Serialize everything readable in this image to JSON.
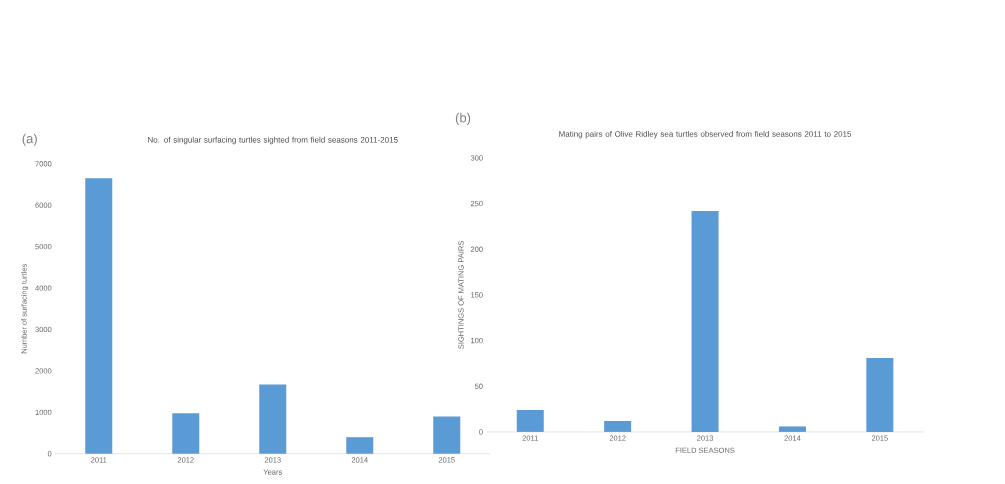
{
  "chart_data": [
    {
      "type": "bar",
      "title": "No. of singular surfacing turtles sighted from field seasons 2011-2015",
      "xlabel": "Years",
      "ylabel": "Number of surfacing turtles",
      "annotations": [
        "(a)"
      ],
      "categories": [
        "2011",
        "2012",
        "2013",
        "2014",
        "2015"
      ],
      "values": [
        6650,
        980,
        1670,
        400,
        900
      ],
      "color": "#5b9bd5",
      "ylim": [
        0,
        7000
      ],
      "yticks": [
        0,
        1000,
        2000,
        3000,
        4000,
        5000,
        6000,
        7000
      ]
    },
    {
      "type": "bar",
      "title": "Mating pairs of Olive Ridley sea turtles observed from field seasons 2011 to 2015",
      "xlabel": "FIELD SEASONS",
      "ylabel": "SIGHTINGS OF MATING PAIRS",
      "annotations": [
        "(b)"
      ],
      "categories": [
        "2011",
        "2012",
        "2013",
        "2014",
        "2015"
      ],
      "values": [
        24,
        12,
        242,
        6,
        81
      ],
      "color": "#5b9bd5",
      "ylim": [
        0,
        300
      ],
      "yticks": [
        0,
        50,
        100,
        150,
        200,
        250,
        300
      ]
    }
  ]
}
